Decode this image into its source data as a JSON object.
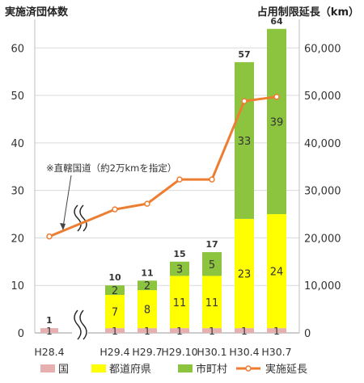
{
  "chart_data": {
    "type": "bar",
    "categories": [
      "H28.4",
      "H29.4",
      "H29.7",
      "H29.10",
      "H30.1",
      "H30.4",
      "H30.7"
    ],
    "y_left_label": "実施済団体数",
    "y_right_label": "占用制限延長（km）",
    "y_left_ticks": [
      "0",
      "10",
      "20",
      "30",
      "40",
      "50",
      "60"
    ],
    "y_right_ticks": [
      "0",
      "10,000",
      "20,000",
      "30,000",
      "40,000",
      "50,000",
      "60,000"
    ],
    "ylim_left": [
      0,
      66
    ],
    "ylim_right": [
      0,
      66000
    ],
    "series": [
      {
        "name": "国",
        "kind": "bar",
        "color": "#e6b0b0",
        "values": [
          1,
          1,
          1,
          1,
          1,
          1,
          1
        ],
        "labels": [
          "1",
          "1",
          "1",
          "1",
          "1",
          "1",
          "1"
        ]
      },
      {
        "name": "都道府県",
        "kind": "bar",
        "color": "#ffff00",
        "values": [
          0,
          7,
          8,
          11,
          11,
          23,
          24
        ],
        "labels": [
          "",
          "7",
          "8",
          "11",
          "11",
          "23",
          "24"
        ]
      },
      {
        "name": "市町村",
        "kind": "bar",
        "color": "#8cc43f",
        "values": [
          0,
          2,
          2,
          3,
          5,
          33,
          39
        ],
        "labels": [
          "",
          "2",
          "2",
          "3",
          "5",
          "33",
          "39"
        ]
      },
      {
        "name": "実施延長",
        "kind": "line",
        "color": "#ed7d31",
        "axis": "right",
        "values": [
          20300,
          26000,
          27200,
          32300,
          32300,
          48800,
          49700
        ]
      }
    ],
    "totals": [
      "1",
      "10",
      "11",
      "15",
      "17",
      "57",
      "64"
    ],
    "annotation": "※直轄国道（約2万kmを指定）",
    "axis_break": true,
    "legend_position": "bottom"
  }
}
